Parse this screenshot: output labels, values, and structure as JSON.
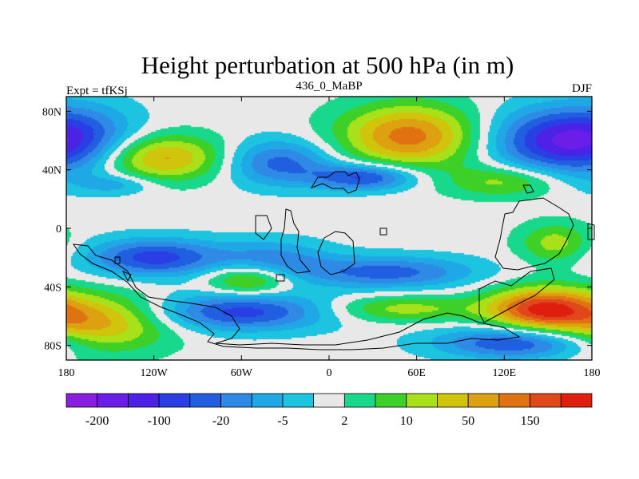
{
  "chart_data": {
    "type": "contour-map",
    "title": "Height perturbation at 500 hPa (in m)",
    "left_string": "Expt = tfKSj",
    "center_string": "436_0_MaBP",
    "right_string": "DJF",
    "xlim": [
      -180,
      180
    ],
    "ylim": [
      -90,
      90
    ],
    "x_ticks": [
      {
        "value": -180,
        "label": "180"
      },
      {
        "value": -120,
        "label": "120W"
      },
      {
        "value": -60,
        "label": "60W"
      },
      {
        "value": 0,
        "label": "0"
      },
      {
        "value": 60,
        "label": "60E"
      },
      {
        "value": 120,
        "label": "120E"
      },
      {
        "value": 180,
        "label": "180"
      }
    ],
    "y_ticks": [
      {
        "value": 80,
        "label": "80N"
      },
      {
        "value": 40,
        "label": "40N"
      },
      {
        "value": 0,
        "label": "0"
      },
      {
        "value": -40,
        "label": "40S"
      },
      {
        "value": -80,
        "label": "80S"
      }
    ],
    "colorbar": {
      "colors": [
        "#8a1ee0",
        "#6a1ee8",
        "#4b22e6",
        "#2a3ee6",
        "#1f5fe0",
        "#2f8ae6",
        "#1ea8e6",
        "#1cc4e0",
        "#e8e8e8",
        "#18d88c",
        "#3cd028",
        "#a8e01a",
        "#d0c40c",
        "#dca010",
        "#e07212",
        "#e0481c",
        "#e01e10"
      ],
      "labels": [
        {
          "boundary": 1,
          "text": "-200"
        },
        {
          "boundary": 3,
          "text": "-100"
        },
        {
          "boundary": 5,
          "text": "-20"
        },
        {
          "boundary": 7,
          "text": "-5"
        },
        {
          "boundary": 9,
          "text": "2"
        },
        {
          "boundary": 11,
          "text": "10"
        },
        {
          "boundary": 13,
          "text": "50"
        },
        {
          "boundary": 15,
          "text": "150"
        }
      ]
    },
    "field": {
      "background_level": 8,
      "anomalies": [
        {
          "lon": -170,
          "lat": 60,
          "rx": 40,
          "ry": 24,
          "peak": 4
        },
        {
          "lon": 150,
          "lat": 60,
          "rx": 45,
          "ry": 22,
          "peak": 3
        },
        {
          "lon": 55,
          "lat": 63,
          "rx": 48,
          "ry": 22,
          "peak": 14
        },
        {
          "lon": -115,
          "lat": 48,
          "rx": 45,
          "ry": 16,
          "peak": 13
        },
        {
          "lon": -35,
          "lat": 45,
          "rx": 38,
          "ry": 16,
          "peak": 4
        },
        {
          "lon": 25,
          "lat": 35,
          "rx": 35,
          "ry": 9,
          "peak": 3
        },
        {
          "lon": 120,
          "lat": 32,
          "rx": 38,
          "ry": 11,
          "peak": 11
        },
        {
          "lon": -145,
          "lat": 30,
          "rx": 28,
          "ry": 7,
          "peak": 6
        },
        {
          "lon": -120,
          "lat": -20,
          "rx": 45,
          "ry": 13,
          "peak": 3
        },
        {
          "lon": -40,
          "lat": -22,
          "rx": 40,
          "ry": 14,
          "peak": 5
        },
        {
          "lon": 40,
          "lat": -30,
          "rx": 60,
          "ry": 11,
          "peak": 4
        },
        {
          "lon": -55,
          "lat": -35,
          "rx": 30,
          "ry": 11,
          "peak": 12
        },
        {
          "lon": 155,
          "lat": -10,
          "rx": 25,
          "ry": 14,
          "peak": 11
        },
        {
          "lon": 145,
          "lat": -55,
          "rx": 38,
          "ry": 15,
          "peak": 15
        },
        {
          "lon": -160,
          "lat": -65,
          "rx": 50,
          "ry": 20,
          "peak": 13
        },
        {
          "lon": -60,
          "lat": -57,
          "rx": 60,
          "ry": 13,
          "peak": 3
        },
        {
          "lon": 130,
          "lat": -78,
          "rx": 55,
          "ry": 11,
          "peak": 3
        },
        {
          "lon": 50,
          "lat": -55,
          "rx": 50,
          "ry": 9,
          "peak": 11
        }
      ]
    }
  }
}
